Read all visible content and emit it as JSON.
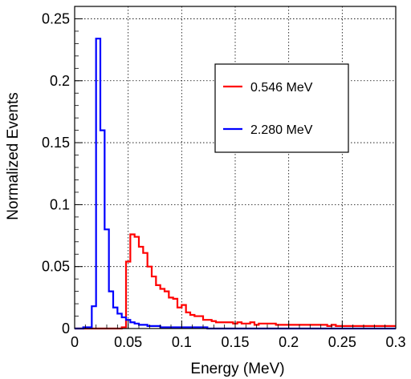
{
  "chart_data": {
    "type": "line",
    "title": "",
    "xlabel": "Energy (MeV)",
    "ylabel": "Normalized Events",
    "xlim": [
      0,
      0.3
    ],
    "ylim": [
      0,
      0.26
    ],
    "xticks": [
      0,
      0.05,
      0.1,
      0.15,
      0.2,
      0.25,
      0.3
    ],
    "xtick_labels": [
      "0",
      "0.05",
      "0.1",
      "0.15",
      "0.2",
      "0.25",
      "0.3"
    ],
    "yticks": [
      0,
      0.05,
      0.1,
      0.15,
      0.2,
      0.25
    ],
    "ytick_labels": [
      "0",
      "0.05",
      "0.1",
      "0.15",
      "0.2",
      "0.25"
    ],
    "grid": true,
    "legend_position": "top-right",
    "bin_width": 0.004,
    "series": [
      {
        "name": "0.546 MeV",
        "color": "#ff0000",
        "style": "step",
        "bin_edges_start": 0,
        "values": [
          0,
          0,
          0,
          0,
          0,
          0,
          0,
          0,
          0,
          0,
          0,
          0.001,
          0.054,
          0.076,
          0.074,
          0.066,
          0.061,
          0.05,
          0.042,
          0.035,
          0.032,
          0.03,
          0.025,
          0.024,
          0.017,
          0.019,
          0.013,
          0.011,
          0.01,
          0.01,
          0.007,
          0.007,
          0.006,
          0.005,
          0.005,
          0.005,
          0.005,
          0.004,
          0.005,
          0.004,
          0.004,
          0.005,
          0.003,
          0.004,
          0.004,
          0.004,
          0.004,
          0.003,
          0.003,
          0.003,
          0.003,
          0.003,
          0.003,
          0.003,
          0.003,
          0.003,
          0.003,
          0.003,
          0.003,
          0.002,
          0.003,
          0.002,
          0.002,
          0.002,
          0.002,
          0.002,
          0.002,
          0.002,
          0.002,
          0.002,
          0.002,
          0.002,
          0.002,
          0.002,
          0.002
        ]
      },
      {
        "name": "2.280 MeV",
        "color": "#0000ff",
        "style": "step",
        "bin_edges_start": 0,
        "values": [
          0,
          0,
          0.001,
          0.001,
          0.018,
          0.234,
          0.16,
          0.08,
          0.03,
          0.017,
          0.012,
          0.009,
          0.007,
          0.005,
          0.004,
          0.003,
          0.003,
          0.002,
          0.002,
          0.002,
          0.001,
          0.001,
          0.001,
          0.001,
          0.001,
          0.001,
          0.001,
          0.001,
          0.001,
          0.001,
          0.001,
          0,
          0,
          0,
          0,
          0,
          0,
          0,
          0,
          0,
          0,
          0,
          0,
          0,
          0,
          0,
          0,
          0,
          0,
          0,
          0,
          0,
          0,
          0,
          0,
          0,
          0,
          0,
          0,
          0,
          0,
          0,
          0,
          0,
          0,
          0,
          0,
          0,
          0,
          0,
          0,
          0,
          0,
          0,
          0
        ]
      }
    ]
  }
}
